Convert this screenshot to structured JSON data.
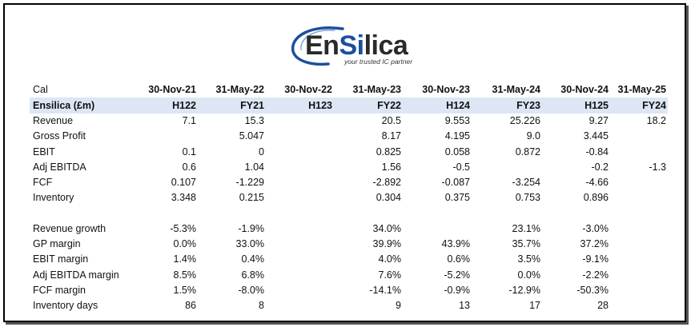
{
  "brand": {
    "name_pre": "En",
    "name_accent": "Si",
    "name_post": "lica",
    "tagline": "your trusted IC partner",
    "primary_color": "#1e4e9e",
    "band_color": "#dce6f4"
  },
  "table": {
    "corner_label": "Cal",
    "dates": [
      "30-Nov-21",
      "31-May-22",
      "30-Nov-22",
      "31-May-23",
      "30-Nov-23",
      "31-May-24",
      "30-Nov-24",
      "31-May-25"
    ],
    "company_label": "Ensilica (£m)",
    "periods": [
      "H122",
      "FY21",
      "H123",
      "FY22",
      "H124",
      "FY23",
      "H125",
      "FY24"
    ],
    "rows": [
      {
        "label": "Revenue",
        "values": [
          "7.1",
          "15.3",
          "",
          "20.5",
          "9.553",
          "25.226",
          "9.27",
          "18.2"
        ]
      },
      {
        "label": "Gross Profit",
        "values": [
          "",
          "5.047",
          "",
          "8.17",
          "4.195",
          "9.0",
          "3.445",
          ""
        ]
      },
      {
        "label": "EBIT",
        "values": [
          "0.1",
          "0",
          "",
          "0.825",
          "0.058",
          "0.872",
          "-0.84",
          ""
        ]
      },
      {
        "label": "Adj EBITDA",
        "values": [
          "0.6",
          "1.04",
          "",
          "1.56",
          "-0.5",
          "",
          "-0.2",
          "-1.3"
        ]
      },
      {
        "label": "FCF",
        "values": [
          "0.107",
          "-1.229",
          "",
          "-2.892",
          "-0.087",
          "-3.254",
          "-4.66",
          ""
        ]
      },
      {
        "label": "Inventory",
        "values": [
          "3.348",
          "0.215",
          "",
          "0.304",
          "0.375",
          "0.753",
          "0.896",
          ""
        ]
      }
    ],
    "ratio_rows": [
      {
        "label": "Revenue growth",
        "values": [
          "-5.3%",
          "-1.9%",
          "",
          "34.0%",
          "",
          "23.1%",
          "-3.0%",
          ""
        ]
      },
      {
        "label": "GP margin",
        "values": [
          "0.0%",
          "33.0%",
          "",
          "39.9%",
          "43.9%",
          "35.7%",
          "37.2%",
          ""
        ]
      },
      {
        "label": "EBIT margin",
        "values": [
          "1.4%",
          "0.4%",
          "",
          "4.0%",
          "0.6%",
          "3.5%",
          "-9.1%",
          ""
        ]
      },
      {
        "label": "Adj EBITDA margin",
        "values": [
          "8.5%",
          "6.8%",
          "",
          "7.6%",
          "-5.2%",
          "0.0%",
          "-2.2%",
          ""
        ]
      },
      {
        "label": "FCF margin",
        "values": [
          "1.5%",
          "-8.0%",
          "",
          "-14.1%",
          "-0.9%",
          "-12.9%",
          "-50.3%",
          ""
        ]
      },
      {
        "label": "Inventory days",
        "values": [
          "86",
          "8",
          "",
          "9",
          "13",
          "17",
          "28",
          ""
        ]
      }
    ]
  }
}
